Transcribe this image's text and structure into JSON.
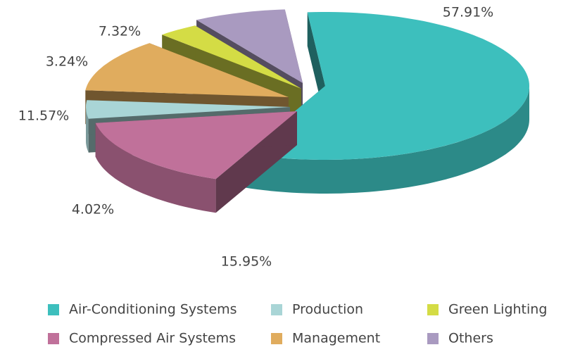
{
  "chart_data": {
    "type": "pie3d",
    "categories": [
      "Air-Conditioning Systems",
      "Compressed Air Systems",
      "Production",
      "Management",
      "Green Lighting",
      "Others"
    ],
    "values": [
      57.91,
      15.95,
      4.02,
      11.57,
      3.24,
      7.32
    ],
    "value_labels": [
      "57.91%",
      "15.95%",
      "4.02%",
      "11.57%",
      "3.24%",
      "7.32%"
    ],
    "colors": [
      "#3dbfbd",
      "#c0719a",
      "#a9d5d6",
      "#e0ac5e",
      "#d4dc45",
      "#a99ac0"
    ],
    "legend": "bottom"
  }
}
